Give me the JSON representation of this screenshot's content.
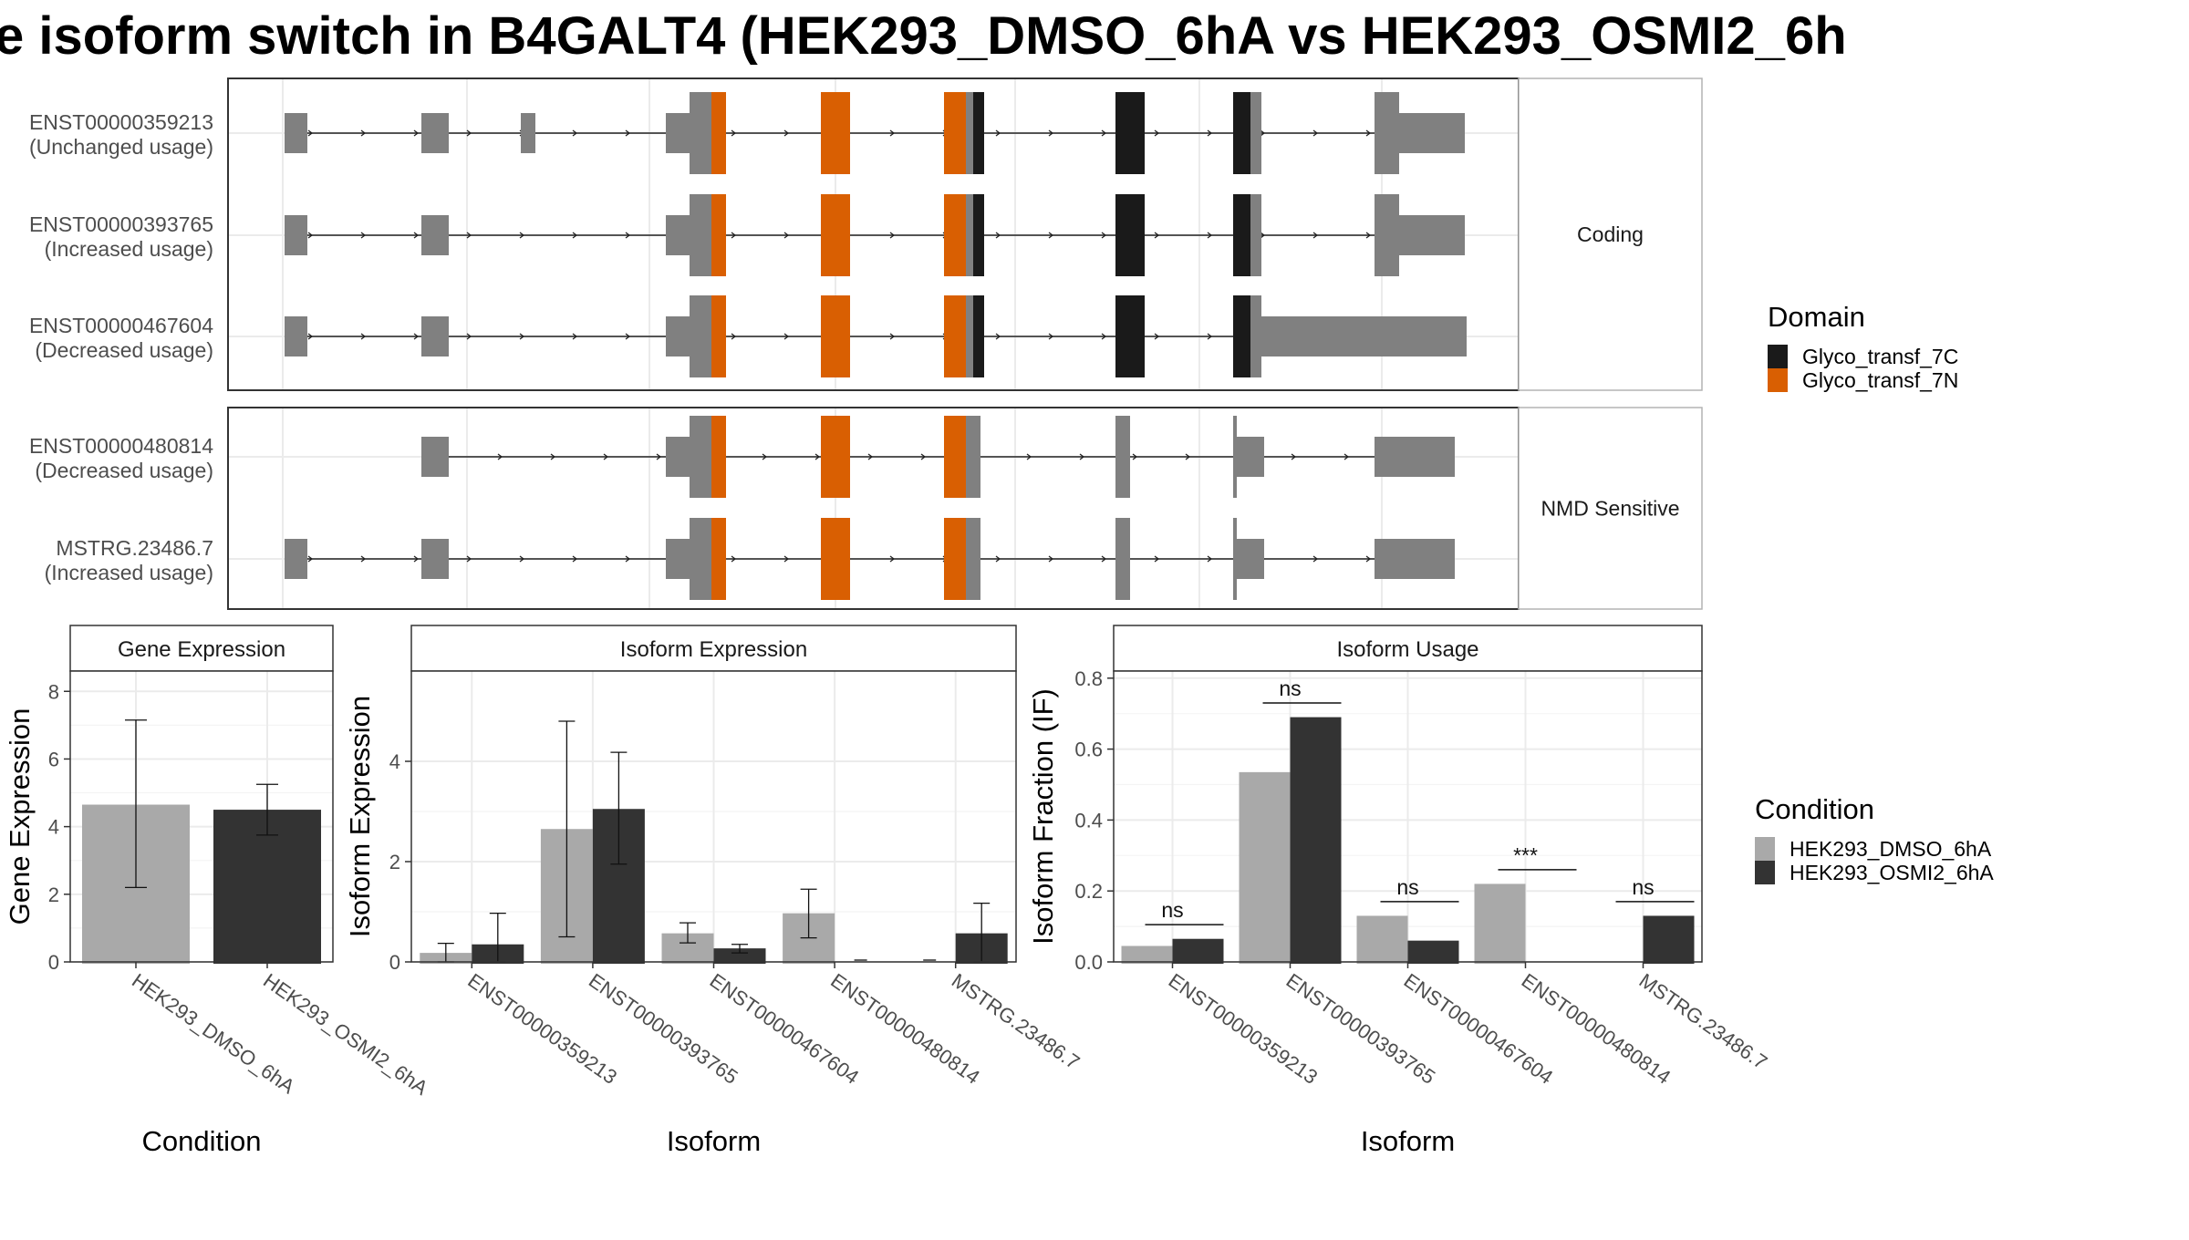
{
  "title": "e isoform switch in B4GALT4 (HEK293_DMSO_6hA vs HEK293_OSMI2_6h",
  "colors": {
    "exon": "#808080",
    "glyco_C": "#1a1a1a",
    "glyco_N": "#d95f02",
    "cond1": "#a9a9a9",
    "cond2": "#333333",
    "grid": "#ebebeb",
    "strip": "#ffffff"
  },
  "structure": {
    "panels": [
      {
        "strip": "Coding",
        "transcripts": [
          {
            "id": "ENST00000359213",
            "usage": "(Unchanged usage)"
          },
          {
            "id": "ENST00000393765",
            "usage": "(Increased usage)"
          },
          {
            "id": "ENST00000467604",
            "usage": "(Decreased usage)"
          }
        ]
      },
      {
        "strip": "NMD Sensitive",
        "transcripts": [
          {
            "id": "ENST00000480814",
            "usage": "(Decreased usage)"
          },
          {
            "id": "MSTRG.23486.7",
            "usage": "(Increased usage)"
          }
        ]
      }
    ]
  },
  "legends": {
    "domain": {
      "title": "Domain",
      "items": [
        {
          "label": "Glyco_transf_7C",
          "color": "#1a1a1a"
        },
        {
          "label": "Glyco_transf_7N",
          "color": "#d95f02"
        }
      ]
    },
    "condition": {
      "title": "Condition",
      "items": [
        {
          "label": "HEK293_DMSO_6hA",
          "color": "#a9a9a9"
        },
        {
          "label": "HEK293_OSMI2_6hA",
          "color": "#333333"
        }
      ]
    }
  },
  "chart_data": [
    {
      "type": "bar",
      "title": "Gene Expression",
      "xlabel": "Condition",
      "ylabel": "Gene Expression",
      "ylim": [
        0,
        8.6
      ],
      "yticks": [
        0,
        2,
        4,
        6,
        8
      ],
      "categories": [
        "HEK293_DMSO_6hA",
        "HEK293_OSMI2_6hA"
      ],
      "values": [
        4.65,
        4.5
      ],
      "errors": [
        [
          2.2,
          7.15
        ],
        [
          3.75,
          5.25
        ]
      ]
    },
    {
      "type": "bar",
      "title": "Isoform Expression",
      "xlabel": "Isoform",
      "ylabel": "Isoform Expression",
      "ylim": [
        0,
        5.8
      ],
      "yticks": [
        0,
        2,
        4
      ],
      "categories": [
        "ENST00000359213",
        "ENST00000393765",
        "ENST00000467604",
        "ENST00000480814",
        "MSTRG.23486.7"
      ],
      "series": [
        {
          "name": "HEK293_DMSO_6hA",
          "values": [
            0.18,
            2.65,
            0.57,
            0.97,
            0.0
          ],
          "errors": [
            [
              0.0,
              0.37
            ],
            [
              0.5,
              4.8
            ],
            [
              0.38,
              0.78
            ],
            [
              0.48,
              1.45
            ],
            [
              0.0,
              0.0
            ]
          ]
        },
        {
          "name": "HEK293_OSMI2_6hA",
          "values": [
            0.35,
            3.05,
            0.27,
            0.0,
            0.57
          ],
          "errors": [
            [
              0.0,
              0.97
            ],
            [
              1.95,
              4.18
            ],
            [
              0.18,
              0.35
            ],
            [
              0.0,
              0.0
            ],
            [
              0.0,
              1.17
            ]
          ]
        }
      ]
    },
    {
      "type": "bar",
      "title": "Isoform Usage",
      "xlabel": "Isoform",
      "ylabel": "Isoform Fraction (IF)",
      "ylim": [
        0,
        0.82
      ],
      "yticks": [
        "0.0",
        "0.2",
        "0.4",
        "0.6",
        "0.8"
      ],
      "categories": [
        "ENST00000359213",
        "ENST00000393765",
        "ENST00000467604",
        "ENST00000480814",
        "MSTRG.23486.7"
      ],
      "series": [
        {
          "name": "HEK293_DMSO_6hA",
          "values": [
            0.045,
            0.535,
            0.13,
            0.22,
            0.0
          ]
        },
        {
          "name": "HEK293_OSMI2_6hA",
          "values": [
            0.065,
            0.69,
            0.06,
            0.0,
            0.13
          ]
        }
      ],
      "significance": [
        {
          "label": "ns",
          "y": 0.105
        },
        {
          "label": "ns",
          "y": 0.73
        },
        {
          "label": "ns",
          "y": 0.17
        },
        {
          "label": "***",
          "y": 0.26
        },
        {
          "label": "ns",
          "y": 0.17
        }
      ]
    }
  ]
}
